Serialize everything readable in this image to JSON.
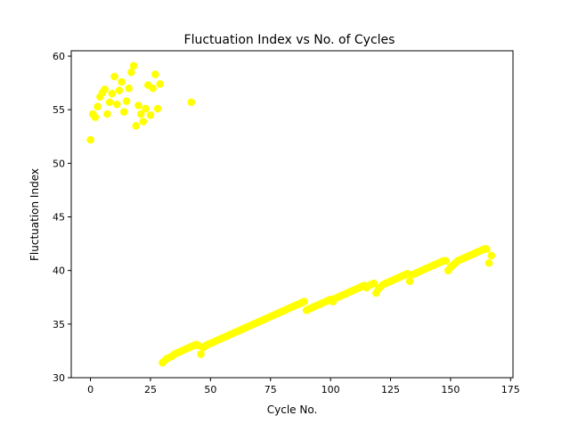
{
  "chart_data": {
    "type": "scatter",
    "title": "Fluctuation Index vs No. of Cycles",
    "xlabel": "Cycle No.",
    "ylabel": "Fluctuation Index",
    "xlim": [
      -8,
      176
    ],
    "ylim": [
      30,
      60.5
    ],
    "xticks": [
      0,
      25,
      50,
      75,
      100,
      125,
      150,
      175
    ],
    "yticks": [
      30,
      35,
      40,
      45,
      50,
      55,
      60
    ],
    "grid": false,
    "marker_color": "#ffff00",
    "series": [
      {
        "x": [
          0,
          1,
          2,
          3,
          4,
          5,
          6,
          7,
          8,
          9,
          10,
          11,
          12,
          13,
          14,
          15,
          16,
          17,
          18,
          19,
          20,
          21,
          22,
          23,
          24,
          25,
          26,
          27,
          28,
          29,
          42,
          30,
          31,
          32,
          33,
          34,
          35,
          36,
          37,
          38,
          39,
          40,
          41,
          42,
          43,
          44,
          45,
          46,
          47,
          48,
          49,
          50,
          51,
          52,
          53,
          54,
          55,
          56,
          57,
          58,
          59,
          60,
          61,
          62,
          63,
          64,
          65,
          66,
          67,
          68,
          69,
          70,
          71,
          72,
          73,
          74,
          75,
          76,
          77,
          78,
          79,
          80,
          81,
          82,
          83,
          84,
          85,
          86,
          87,
          88,
          89,
          90,
          91,
          92,
          93,
          94,
          95,
          96,
          97,
          98,
          99,
          100,
          101,
          102,
          103,
          104,
          105,
          106,
          107,
          108,
          109,
          110,
          111,
          112,
          113,
          114,
          115,
          116,
          117,
          118,
          119,
          120,
          121,
          122,
          123,
          124,
          125,
          126,
          127,
          128,
          129,
          130,
          131,
          132,
          133,
          134,
          135,
          136,
          137,
          138,
          139,
          140,
          141,
          142,
          143,
          144,
          145,
          146,
          147,
          148,
          149,
          150,
          151,
          152,
          153,
          154,
          155,
          156,
          157,
          158,
          159,
          160,
          161,
          162,
          163,
          164,
          165,
          166,
          167
        ],
        "y": [
          52.2,
          54.6,
          54.3,
          55.3,
          56.2,
          56.6,
          56.9,
          54.6,
          55.7,
          56.5,
          58.1,
          55.5,
          56.8,
          57.6,
          54.8,
          55.8,
          57.0,
          58.5,
          59.1,
          53.5,
          55.4,
          54.6,
          53.9,
          55.1,
          57.3,
          54.5,
          57.0,
          58.3,
          55.1,
          57.4,
          55.7,
          31.4,
          31.6,
          31.8,
          31.9,
          32.0,
          32.2,
          32.3,
          32.4,
          32.5,
          32.6,
          32.7,
          32.8,
          32.9,
          33.0,
          33.1,
          33.0,
          32.2,
          32.8,
          33.0,
          33.1,
          33.2,
          33.3,
          33.4,
          33.5,
          33.6,
          33.7,
          33.8,
          33.9,
          34.0,
          34.1,
          34.2,
          34.3,
          34.4,
          34.5,
          34.6,
          34.7,
          34.8,
          34.9,
          35.0,
          35.1,
          35.2,
          35.3,
          35.4,
          35.5,
          35.6,
          35.7,
          35.8,
          35.9,
          36.0,
          36.1,
          36.2,
          36.3,
          36.4,
          36.5,
          36.6,
          36.7,
          36.8,
          36.9,
          37.0,
          37.1,
          36.3,
          36.4,
          36.5,
          36.6,
          36.7,
          36.8,
          36.9,
          37.0,
          37.1,
          37.2,
          37.3,
          37.1,
          37.4,
          37.5,
          37.6,
          37.7,
          37.8,
          37.9,
          38.0,
          38.1,
          38.2,
          38.3,
          38.4,
          38.5,
          38.6,
          38.4,
          38.6,
          38.7,
          38.8,
          37.9,
          38.3,
          38.5,
          38.7,
          38.8,
          38.9,
          39.0,
          39.1,
          39.2,
          39.3,
          39.4,
          39.5,
          39.6,
          39.7,
          39.0,
          39.6,
          39.7,
          39.8,
          39.9,
          40.0,
          40.1,
          40.2,
          40.3,
          40.4,
          40.5,
          40.6,
          40.7,
          40.8,
          40.9,
          40.9,
          40.0,
          40.3,
          40.5,
          40.7,
          40.9,
          41.0,
          41.1,
          41.2,
          41.3,
          41.4,
          41.5,
          41.6,
          41.7,
          41.8,
          41.9,
          42.0,
          42.0,
          40.7,
          41.4
        ]
      }
    ]
  }
}
